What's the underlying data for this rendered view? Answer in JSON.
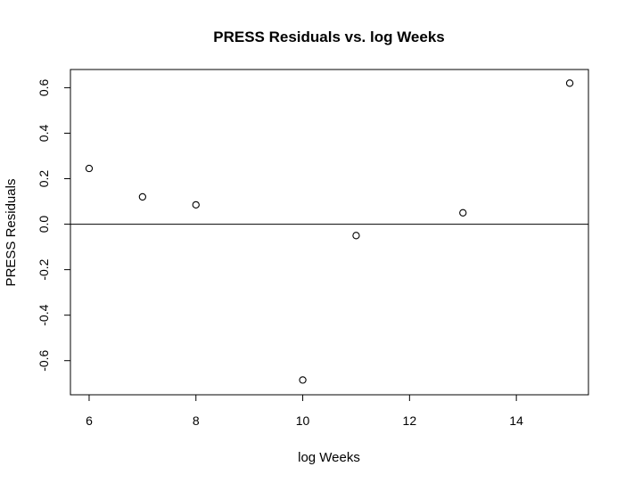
{
  "chart_data": {
    "type": "scatter",
    "title": "PRESS Residuals vs. log Weeks",
    "xlabel": "log Weeks",
    "ylabel": "PRESS Residuals",
    "xlim": [
      5.65,
      15.35
    ],
    "ylim": [
      -0.75,
      0.68
    ],
    "x_ticks": [
      6,
      8,
      10,
      12,
      14
    ],
    "x_tick_labels": [
      "6",
      "8",
      "10",
      "12",
      "14"
    ],
    "y_ticks": [
      -0.6,
      -0.4,
      -0.2,
      0.0,
      0.2,
      0.4,
      0.6
    ],
    "y_tick_labels": [
      "-0.6",
      "-0.4",
      "-0.2",
      "0.0",
      "0.2",
      "0.4",
      "0.6"
    ],
    "reference_line_y": 0,
    "marker": "open-circle",
    "grid": false,
    "points": [
      {
        "x": 6,
        "y": 0.245
      },
      {
        "x": 7,
        "y": 0.12
      },
      {
        "x": 8,
        "y": 0.085
      },
      {
        "x": 10,
        "y": -0.685
      },
      {
        "x": 11,
        "y": -0.05
      },
      {
        "x": 13,
        "y": 0.05
      },
      {
        "x": 15,
        "y": 0.62
      }
    ]
  }
}
